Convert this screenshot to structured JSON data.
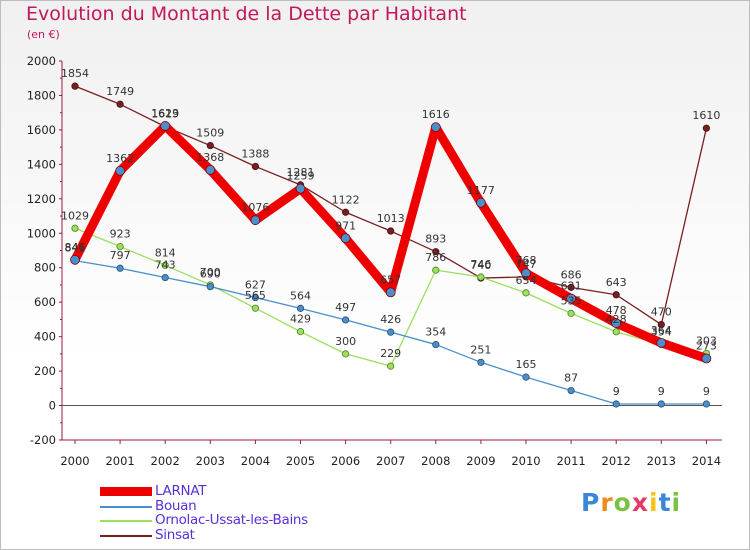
{
  "title": "Evolution du Montant de la Dette par Habitant",
  "subtitle": "(en €)",
  "logo_text": "Proxiti",
  "chart_data": {
    "type": "line",
    "title": "Evolution du Montant de la Dette par Habitant",
    "ylabel": "(en €)",
    "xlabel": "",
    "ylim": [
      -200,
      2000
    ],
    "y_ticks": [
      -200,
      0,
      200,
      400,
      600,
      800,
      1000,
      1200,
      1400,
      1600,
      1800,
      2000
    ],
    "categories": [
      "2000",
      "2001",
      "2002",
      "2003",
      "2004",
      "2005",
      "2006",
      "2007",
      "2008",
      "2009",
      "2010",
      "2011",
      "2012",
      "2013",
      "2014"
    ],
    "series": [
      {
        "name": "Sinsat",
        "color": "#7a1f1f",
        "values": [
          1854,
          1749,
          1619,
          1509,
          1388,
          1281,
          1122,
          1013,
          893,
          740,
          747,
          686,
          643,
          470,
          1610
        ]
      },
      {
        "name": "Ornolac-Ussat-les-Bains",
        "color": "#9be05a",
        "values": [
          1029,
          923,
          814,
          700,
          565,
          429,
          300,
          229,
          786,
          746,
          654,
          535,
          428,
          354,
          303
        ]
      },
      {
        "name": "Bouan",
        "color": "#4a8fcc",
        "values": [
          841,
          797,
          743,
          690,
          627,
          564,
          497,
          426,
          354,
          251,
          165,
          87,
          9,
          9,
          9
        ]
      },
      {
        "name": "LARNAT",
        "color": "#ee0000",
        "values": [
          846,
          1362,
          1623,
          1368,
          1076,
          1259,
          971,
          657,
          1616,
          1177,
          768,
          621,
          478,
          364,
          273
        ]
      }
    ],
    "legend": [
      "LARNAT",
      "Bouan",
      "Ornolac-Ussat-les-Bains",
      "Sinsat"
    ],
    "grid": false,
    "legend_position": "bottom-left"
  }
}
